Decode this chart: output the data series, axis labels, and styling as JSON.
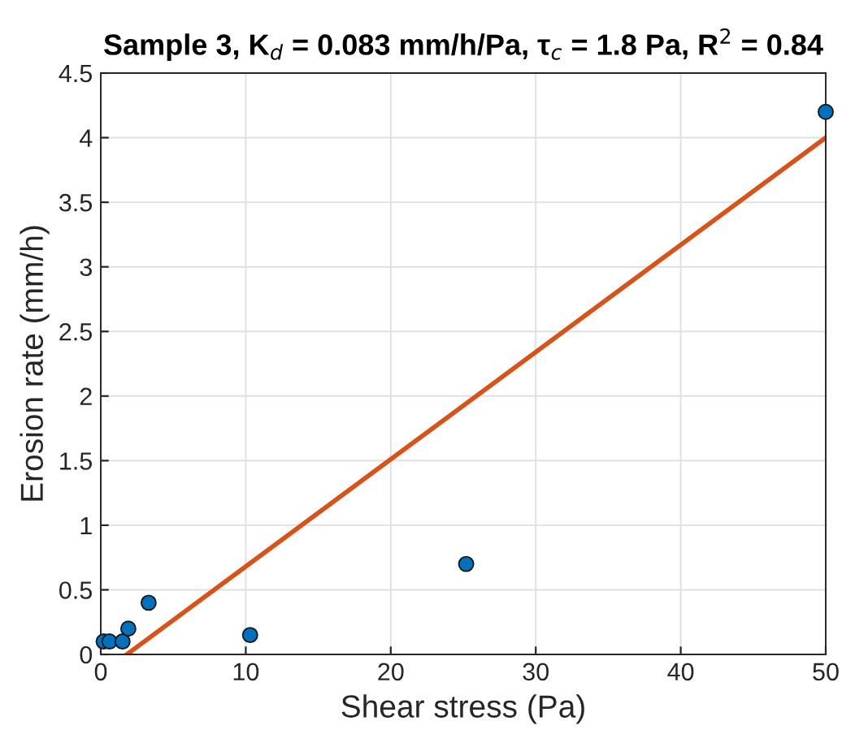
{
  "chart_data": {
    "type": "scatter",
    "title": "Sample 3, K$_{d}$ = 0.083 mm/h/Pa, τ$_{c}$ = 1.8 Pa, R$^{2}$ = 0.84",
    "xlabel": "Shear stress (Pa)",
    "ylabel": "Erosion rate (mm/h)",
    "series": [
      {
        "color": "#0072bd",
        "marker": "circle",
        "x": [
          0.2,
          0.6,
          1.5,
          1.9,
          3.3,
          10.3,
          25.2,
          50
        ],
        "values": [
          0.1,
          0.1,
          0.1,
          0.2,
          0.4,
          0.15,
          0.7,
          4.2
        ]
      },
      {
        "type": "line",
        "color": "#d95319",
        "x": [
          1.8,
          50
        ],
        "values": [
          0,
          4.0
        ]
      }
    ],
    "xlim": [
      0,
      50
    ],
    "ylim": [
      0,
      4.5
    ],
    "xticks": [
      0,
      10,
      20,
      30,
      40,
      50
    ],
    "yticks": [
      0,
      0.5,
      1,
      1.5,
      2,
      2.5,
      3,
      3.5,
      4,
      4.5
    ],
    "grid": true
  }
}
